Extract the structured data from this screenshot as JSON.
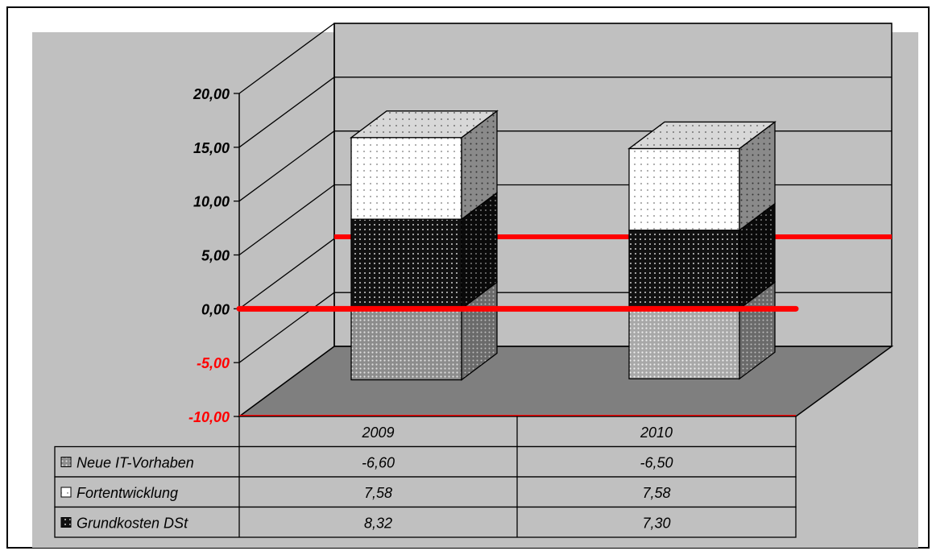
{
  "chart_data": {
    "type": "bar",
    "stacked": true,
    "three_d": true,
    "categories": [
      "2009",
      "2010"
    ],
    "series": [
      {
        "name": "Neue IT-Vorhaben",
        "values": [
          -6.6,
          -6.5
        ],
        "labels": [
          "-6,60",
          "-6,50"
        ],
        "color": "#8c8c8c"
      },
      {
        "name": "Fortentwicklung",
        "values": [
          7.58,
          7.58
        ],
        "labels": [
          "7,58",
          "7,58"
        ],
        "color": "#ffffff"
      },
      {
        "name": "Grundkosten DSt",
        "values": [
          8.32,
          7.3
        ],
        "labels": [
          "8,32",
          "7,30"
        ],
        "color": "#1a1a1a"
      }
    ],
    "ylim": [
      -10,
      20
    ],
    "yticks": [
      {
        "value": 20,
        "label": "20,00"
      },
      {
        "value": 15,
        "label": "15,00"
      },
      {
        "value": 10,
        "label": "10,00"
      },
      {
        "value": 5,
        "label": "5,00"
      },
      {
        "value": 0,
        "label": "0,00"
      },
      {
        "value": -5,
        "label": "-5,00"
      },
      {
        "value": -10,
        "label": "-10,00"
      }
    ],
    "reference_lines": [
      0,
      6.6,
      -10
    ],
    "reference_line_color": "#ff0000",
    "negative_tick_color": "#ff0000",
    "grid": true,
    "legend": "data-table",
    "xlabel": "",
    "ylabel": "",
    "title": ""
  }
}
